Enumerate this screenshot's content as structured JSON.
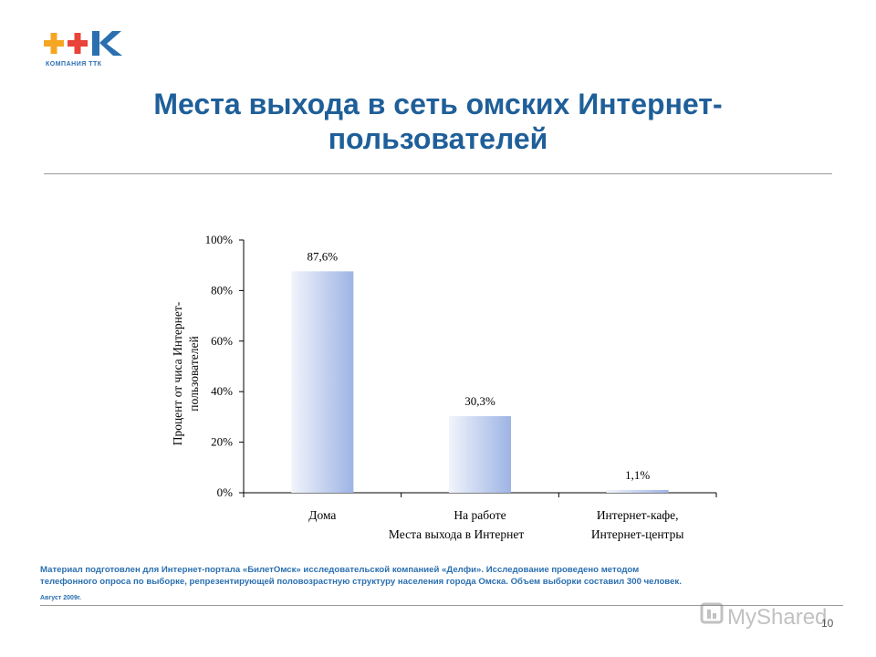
{
  "logo": {
    "text": "++K",
    "caption": "КОМПАНИЯ ТТК"
  },
  "slide": {
    "title_line1": "Места выхода в сеть омских Интернет-",
    "title_line2": "пользователей",
    "note_line1": "Материал подготовлен для Интернет-портала «БилетОмск» исследовательской компанией «Делфи». Исследование проведено методом",
    "note_line2": "телефонного опроса по выборке, репрезентирующей половозрастную структуру населения города Омска. Объем выборки составил 300 человек.",
    "date": "Август 2009г.",
    "page_number": "10",
    "watermark": "MyShared"
  },
  "colors": {
    "title": "#1f5f99",
    "note": "#2a6fb0",
    "bar_light": "#f1f4fb",
    "bar_dark": "#9db4e4"
  },
  "chart_data": {
    "type": "bar",
    "categories": [
      [
        "Дома"
      ],
      [
        "На работе"
      ],
      [
        "Интернет-кафе,",
        "Интернет-центры"
      ]
    ],
    "values": [
      87.6,
      30.3,
      1.1
    ],
    "value_labels": [
      "87,6%",
      "30,3%",
      "1,1%"
    ],
    "xlabel": "Места выхода в Интернет",
    "ylabel": [
      "Процент от чиса Интернет-",
      "пользователей"
    ],
    "ylim": [
      0,
      100
    ],
    "yticks": [
      0,
      20,
      40,
      60,
      80,
      100
    ],
    "ytick_labels": [
      "0%",
      "20%",
      "40%",
      "60%",
      "80%",
      "100%"
    ],
    "grid": false
  }
}
